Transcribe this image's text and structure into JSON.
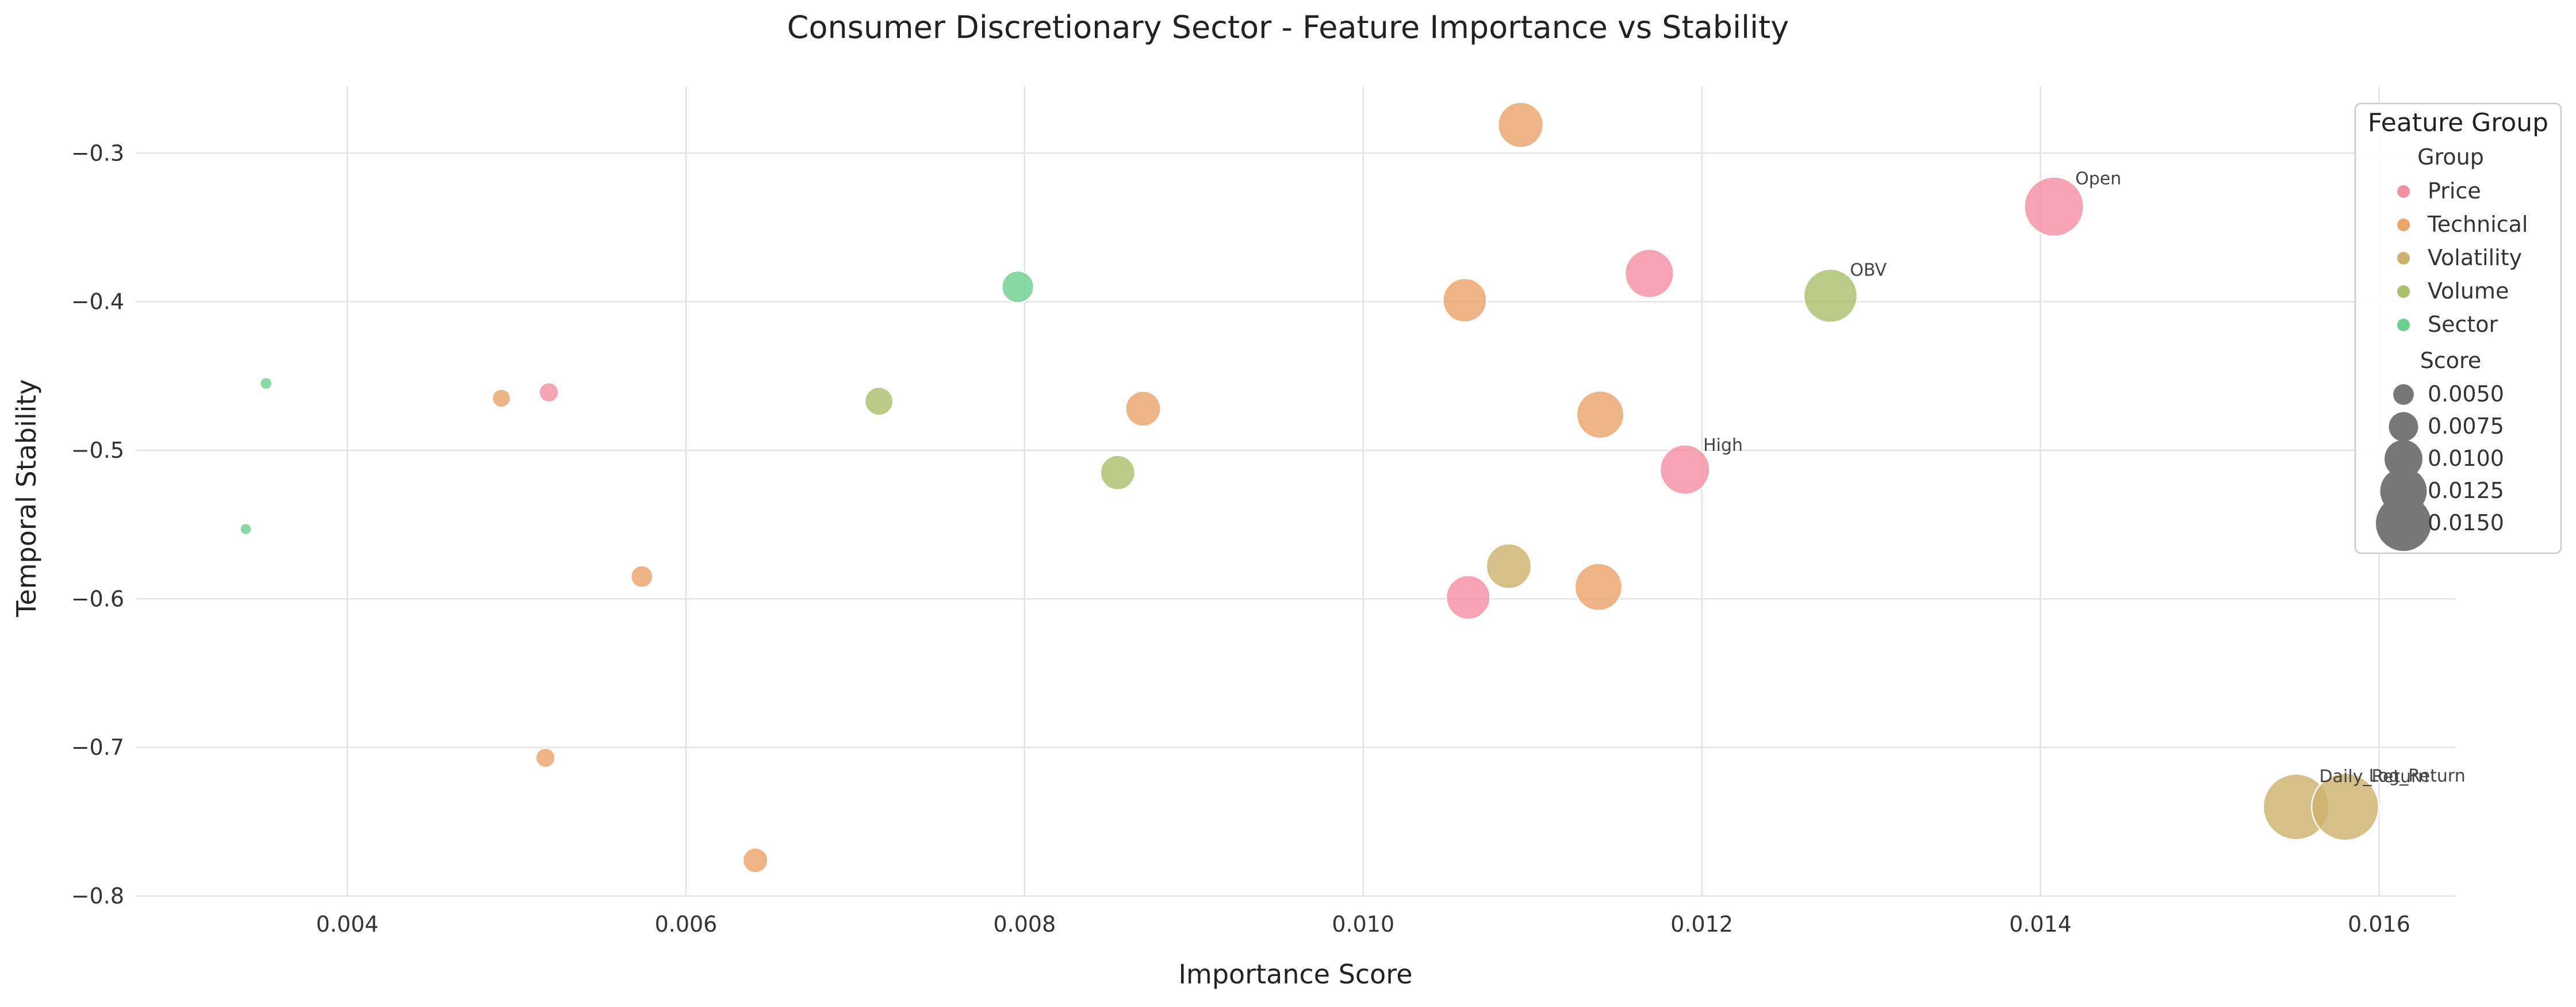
{
  "chart_data": {
    "type": "scatter",
    "title": "Consumer Discretionary Sector - Feature Importance vs Stability",
    "xlabel": "Importance Score",
    "ylabel": "Temporal Stability",
    "xlim": [
      0.00275,
      0.01645
    ],
    "ylim": [
      -0.8,
      -0.255
    ],
    "xticks": [
      0.004,
      0.006,
      0.008,
      0.01,
      0.012,
      0.014,
      0.016
    ],
    "xtick_labels": [
      "0.004",
      "0.006",
      "0.008",
      "0.010",
      "0.012",
      "0.014",
      "0.016"
    ],
    "yticks": [
      -0.3,
      -0.4,
      -0.5,
      -0.6,
      -0.7,
      -0.8
    ],
    "ytick_labels": [
      "−0.3",
      "−0.4",
      "−0.5",
      "−0.6",
      "−0.7",
      "−0.8"
    ],
    "grid": true,
    "legend": {
      "title": "Feature Group",
      "placement": "top-right",
      "hue_title": "Group",
      "size_title": "Score",
      "groups": [
        {
          "name": "Price",
          "color": "#f48fa2"
        },
        {
          "name": "Technical",
          "color": "#eba46a"
        },
        {
          "name": "Volatility",
          "color": "#cdb26d"
        },
        {
          "name": "Volume",
          "color": "#a9bf6b"
        },
        {
          "name": "Sector",
          "color": "#6ccf8f"
        }
      ],
      "sizes": [
        {
          "label": "0.0050",
          "value": 0.005
        },
        {
          "label": "0.0075",
          "value": 0.0075
        },
        {
          "label": "0.0100",
          "value": 0.01
        },
        {
          "label": "0.0125",
          "value": 0.0125
        },
        {
          "label": "0.0150",
          "value": 0.015
        }
      ]
    },
    "points": [
      {
        "x": 0.01408,
        "y": -0.336,
        "group": "Price",
        "label": "Open"
      },
      {
        "x": 0.01169,
        "y": -0.381,
        "group": "Price",
        "label": ""
      },
      {
        "x": 0.0119,
        "y": -0.513,
        "group": "Price",
        "label": "High"
      },
      {
        "x": 0.01062,
        "y": -0.599,
        "group": "Price",
        "label": ""
      },
      {
        "x": 0.00519,
        "y": -0.461,
        "group": "Price",
        "label": ""
      },
      {
        "x": 0.01093,
        "y": -0.281,
        "group": "Technical",
        "label": ""
      },
      {
        "x": 0.0106,
        "y": -0.399,
        "group": "Technical",
        "label": ""
      },
      {
        "x": 0.0114,
        "y": -0.476,
        "group": "Technical",
        "label": ""
      },
      {
        "x": 0.01139,
        "y": -0.592,
        "group": "Technical",
        "label": ""
      },
      {
        "x": 0.0087,
        "y": -0.472,
        "group": "Technical",
        "label": ""
      },
      {
        "x": 0.00491,
        "y": -0.465,
        "group": "Technical",
        "label": ""
      },
      {
        "x": 0.00574,
        "y": -0.585,
        "group": "Technical",
        "label": ""
      },
      {
        "x": 0.00517,
        "y": -0.707,
        "group": "Technical",
        "label": ""
      },
      {
        "x": 0.00641,
        "y": -0.776,
        "group": "Technical",
        "label": ""
      },
      {
        "x": 0.01086,
        "y": -0.578,
        "group": "Volatility",
        "label": ""
      },
      {
        "x": 0.01551,
        "y": -0.74,
        "group": "Volatility",
        "label": "Daily_Return"
      },
      {
        "x": 0.0158,
        "y": -0.74,
        "group": "Volatility",
        "label": "Log_Return"
      },
      {
        "x": 0.01276,
        "y": -0.396,
        "group": "Volume",
        "label": "OBV"
      },
      {
        "x": 0.00714,
        "y": -0.467,
        "group": "Volume",
        "label": ""
      },
      {
        "x": 0.00855,
        "y": -0.515,
        "group": "Volume",
        "label": ""
      },
      {
        "x": 0.00796,
        "y": -0.39,
        "group": "Sector",
        "label": ""
      },
      {
        "x": 0.00352,
        "y": -0.455,
        "group": "Sector",
        "label": ""
      },
      {
        "x": 0.0034,
        "y": -0.553,
        "group": "Sector",
        "label": ""
      }
    ]
  }
}
